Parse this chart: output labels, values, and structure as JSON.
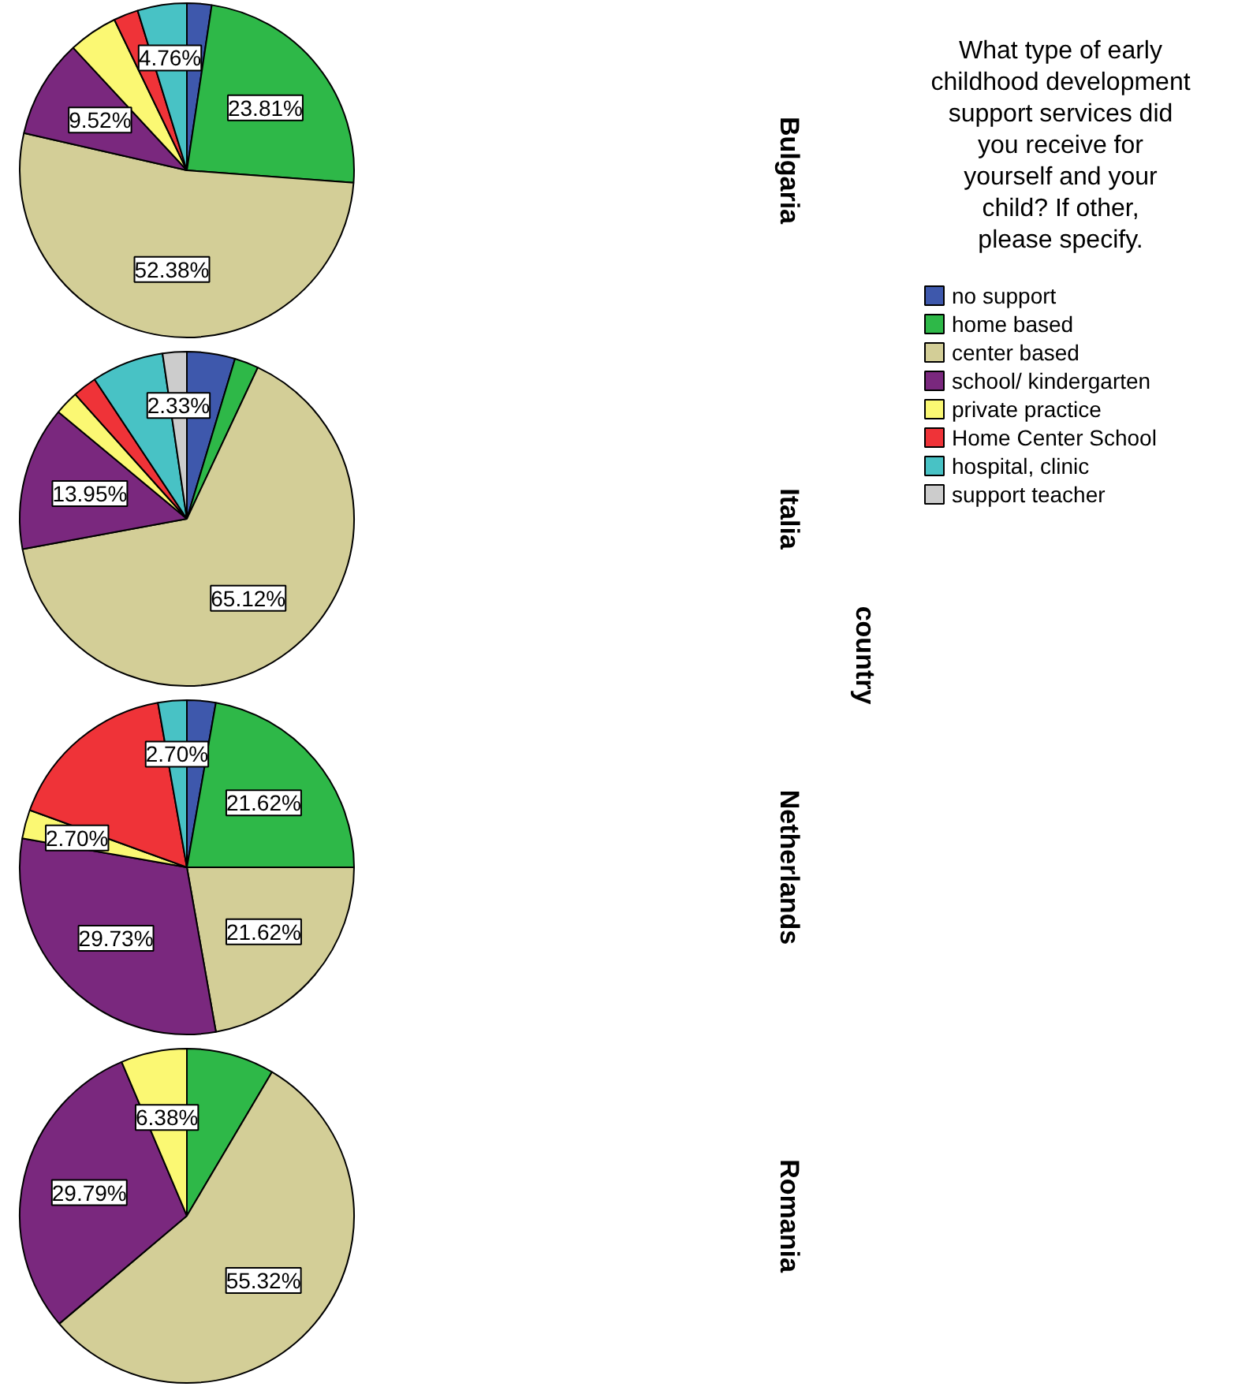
{
  "chart_data": {
    "type": "pie",
    "ylabel": "country",
    "legend": "right",
    "legend_title": "What type of early childhood development support services did you receive for yourself and your child? If other, please specify.",
    "categories": [
      "no support",
      "home based",
      "center based",
      "school/ kindergarten",
      "private practice",
      "Home Center School",
      "hospital, clinic",
      "support teacher"
    ],
    "colors": [
      "#3e58ac",
      "#2eb848",
      "#d3ce97",
      "#7a287e",
      "#fbf873",
      "#ef3338",
      "#48c2c5",
      "#cccccc"
    ],
    "series": [
      {
        "name": "Bulgaria",
        "values": [
          2.38,
          23.81,
          52.38,
          9.52,
          4.76,
          2.38,
          4.76,
          0
        ],
        "value_labels": [
          null,
          "23.81%",
          "52.38%",
          "9.52%",
          null,
          null,
          "4.76%",
          null
        ]
      },
      {
        "name": "Italia",
        "values": [
          4.65,
          2.33,
          65.12,
          13.95,
          2.33,
          2.33,
          6.98,
          2.33
        ],
        "value_labels": [
          null,
          null,
          "65.12%",
          "13.95%",
          null,
          null,
          null,
          "2.33%"
        ]
      },
      {
        "name": "Netherlands",
        "values": [
          2.7,
          21.62,
          21.62,
          29.73,
          2.7,
          16.22,
          2.7,
          0
        ],
        "value_labels": [
          null,
          "21.62%",
          "21.62%",
          "29.73%",
          "2.70%",
          null,
          "2.70%",
          null
        ]
      },
      {
        "name": "Romania",
        "values": [
          0,
          8.51,
          55.32,
          29.79,
          6.38,
          0,
          0,
          0
        ],
        "value_labels": [
          null,
          null,
          "55.32%",
          "29.79%",
          "6.38%",
          null,
          null,
          null
        ]
      }
    ]
  }
}
